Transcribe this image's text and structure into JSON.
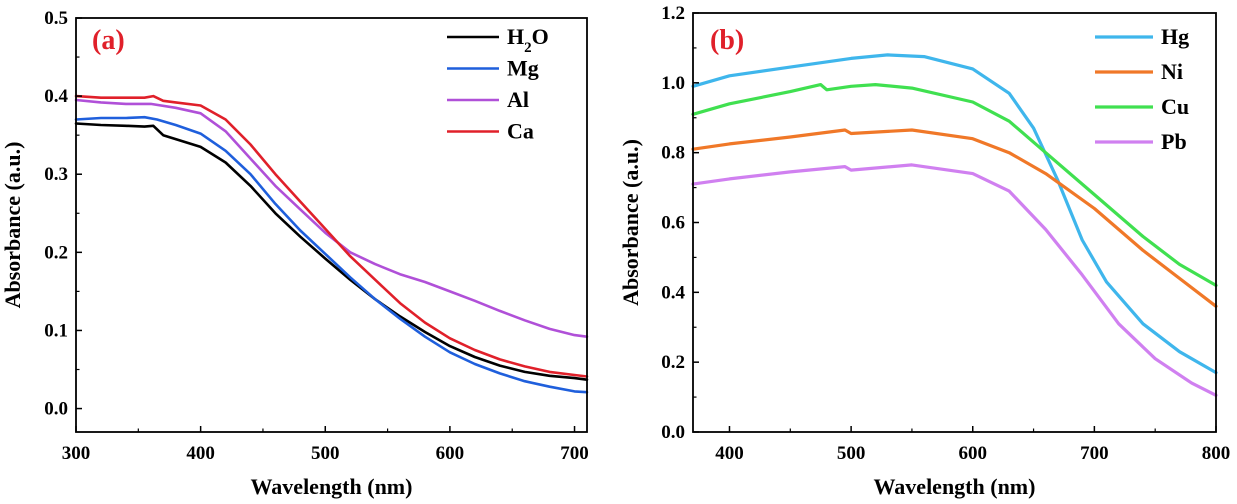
{
  "chart_data": [
    {
      "type": "line",
      "panel_label": "(a)",
      "xlabel": "Wavelength (nm)",
      "ylabel": "Absorbance (a.u.)",
      "xlim": [
        300,
        710
      ],
      "ylim": [
        -0.03,
        0.5
      ],
      "x_ticks": [
        "300",
        "400",
        "500",
        "600",
        "700"
      ],
      "y_ticks": [
        "0.0",
        "0.1",
        "0.2",
        "0.3",
        "0.4",
        "0.5"
      ],
      "legend_position": "top-right",
      "series": [
        {
          "name": "H2O",
          "color": "#000000",
          "x": [
            300,
            320,
            340,
            355,
            362,
            370,
            380,
            400,
            420,
            440,
            460,
            480,
            500,
            520,
            540,
            560,
            580,
            600,
            620,
            640,
            660,
            680,
            700,
            710
          ],
          "y": [
            0.365,
            0.363,
            0.362,
            0.361,
            0.362,
            0.35,
            0.345,
            0.335,
            0.315,
            0.285,
            0.25,
            0.22,
            0.192,
            0.165,
            0.14,
            0.118,
            0.098,
            0.08,
            0.066,
            0.055,
            0.047,
            0.042,
            0.039,
            0.037
          ]
        },
        {
          "name": "Mg",
          "color": "#1f5fdc",
          "x": [
            300,
            320,
            340,
            355,
            365,
            380,
            400,
            420,
            440,
            460,
            480,
            500,
            520,
            540,
            560,
            580,
            600,
            620,
            640,
            660,
            680,
            700,
            710
          ],
          "y": [
            0.37,
            0.372,
            0.372,
            0.373,
            0.37,
            0.363,
            0.352,
            0.33,
            0.3,
            0.262,
            0.228,
            0.198,
            0.168,
            0.14,
            0.115,
            0.092,
            0.072,
            0.057,
            0.045,
            0.035,
            0.028,
            0.022,
            0.021
          ]
        },
        {
          "name": "Al",
          "color": "#b050d8",
          "x": [
            300,
            320,
            340,
            360,
            380,
            400,
            420,
            440,
            460,
            480,
            500,
            520,
            540,
            560,
            580,
            600,
            620,
            640,
            660,
            680,
            700,
            710
          ],
          "y": [
            0.395,
            0.392,
            0.39,
            0.39,
            0.385,
            0.378,
            0.355,
            0.32,
            0.285,
            0.255,
            0.225,
            0.2,
            0.185,
            0.172,
            0.162,
            0.15,
            0.138,
            0.125,
            0.113,
            0.102,
            0.094,
            0.092
          ]
        },
        {
          "name": "Ca",
          "color": "#e0202a",
          "x": [
            300,
            320,
            340,
            355,
            362,
            370,
            380,
            400,
            420,
            440,
            460,
            480,
            500,
            520,
            540,
            560,
            580,
            600,
            620,
            640,
            660,
            680,
            700,
            710
          ],
          "y": [
            0.4,
            0.398,
            0.398,
            0.398,
            0.4,
            0.394,
            0.392,
            0.388,
            0.37,
            0.338,
            0.3,
            0.265,
            0.23,
            0.195,
            0.165,
            0.135,
            0.11,
            0.09,
            0.075,
            0.063,
            0.054,
            0.047,
            0.043,
            0.041
          ]
        }
      ]
    },
    {
      "type": "line",
      "panel_label": "(b)",
      "xlabel": "Wavelength (nm)",
      "ylabel": "Absorbance (a.u.)",
      "xlim": [
        370,
        800
      ],
      "ylim": [
        0.0,
        1.2
      ],
      "x_ticks": [
        "400",
        "500",
        "600",
        "700",
        "800"
      ],
      "y_ticks": [
        "0.0",
        "0.2",
        "0.4",
        "0.6",
        "0.8",
        "1.0",
        "1.2"
      ],
      "legend_position": "top-right",
      "series": [
        {
          "name": "Hg",
          "color": "#3fb6ec",
          "x": [
            370,
            400,
            450,
            500,
            530,
            560,
            600,
            630,
            650,
            670,
            690,
            710,
            740,
            770,
            800
          ],
          "y": [
            0.99,
            1.02,
            1.045,
            1.07,
            1.08,
            1.075,
            1.04,
            0.97,
            0.87,
            0.72,
            0.55,
            0.43,
            0.31,
            0.23,
            0.17
          ]
        },
        {
          "name": "Ni",
          "color": "#f07828",
          "x": [
            370,
            400,
            450,
            495,
            500,
            550,
            600,
            630,
            660,
            700,
            740,
            770,
            800
          ],
          "y": [
            0.81,
            0.825,
            0.845,
            0.865,
            0.855,
            0.865,
            0.84,
            0.8,
            0.74,
            0.64,
            0.52,
            0.44,
            0.36
          ]
        },
        {
          "name": "Cu",
          "color": "#40e050",
          "x": [
            370,
            400,
            450,
            475,
            480,
            500,
            520,
            550,
            600,
            630,
            660,
            700,
            740,
            770,
            800
          ],
          "y": [
            0.91,
            0.94,
            0.975,
            0.995,
            0.98,
            0.99,
            0.995,
            0.985,
            0.945,
            0.89,
            0.8,
            0.68,
            0.56,
            0.48,
            0.42
          ]
        },
        {
          "name": "Pb",
          "color": "#d080f0",
          "x": [
            370,
            400,
            450,
            495,
            500,
            550,
            600,
            630,
            660,
            690,
            720,
            750,
            780,
            800
          ],
          "y": [
            0.71,
            0.725,
            0.745,
            0.76,
            0.75,
            0.765,
            0.74,
            0.69,
            0.58,
            0.45,
            0.31,
            0.21,
            0.14,
            0.105
          ]
        }
      ]
    }
  ]
}
